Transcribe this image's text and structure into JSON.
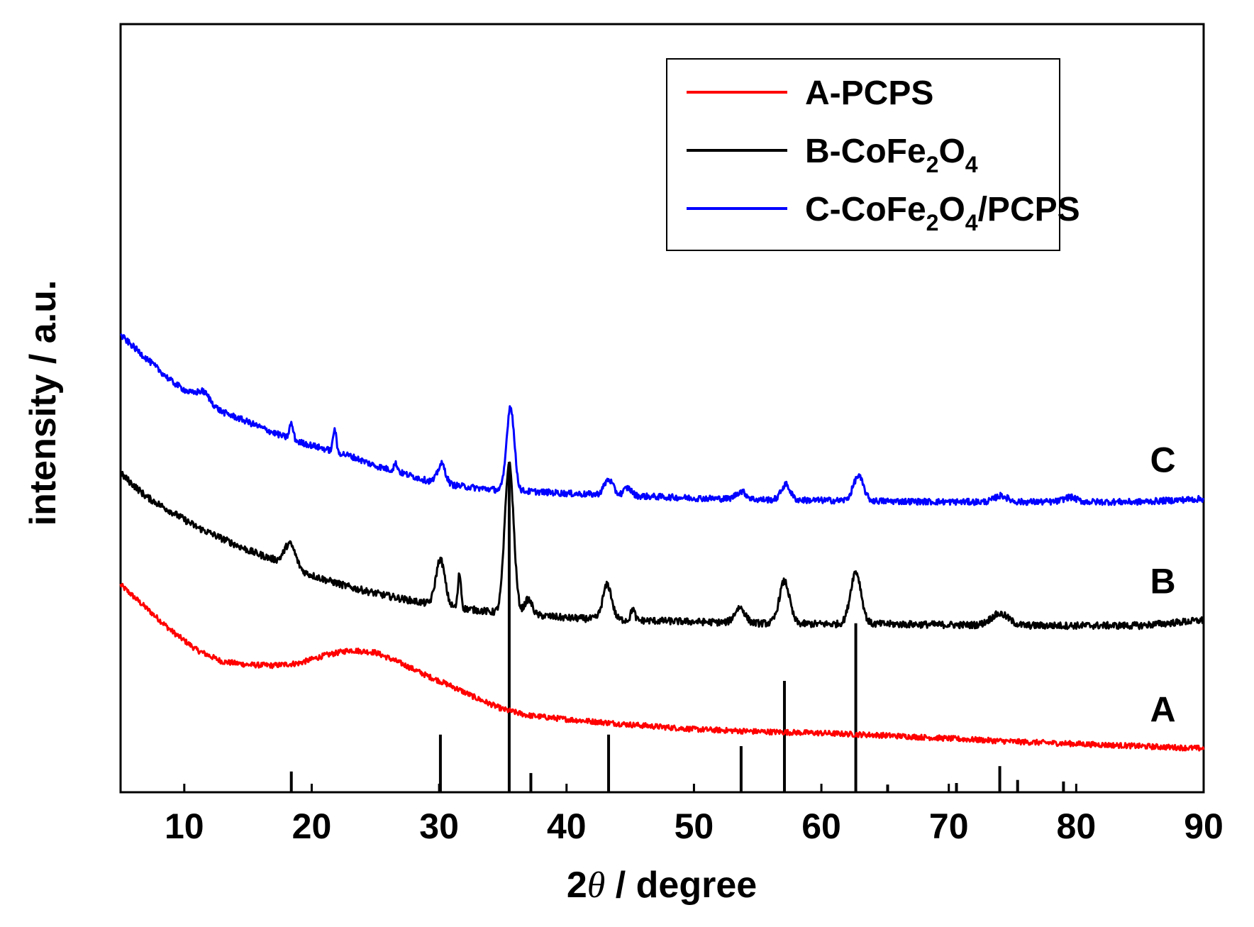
{
  "chart_data": {
    "type": "line",
    "title": "",
    "xlabel": {
      "prefix": "2",
      "symbol": "θ",
      "suffix": " / degree"
    },
    "ylabel": "intensity / a.u.",
    "xlim": [
      5,
      90
    ],
    "ylim": [
      0,
      100
    ],
    "x_ticks": [
      10,
      20,
      30,
      40,
      50,
      60,
      70,
      80,
      90
    ],
    "grid": false,
    "legend_position": "top-right",
    "series": [
      {
        "id": "A",
        "name": "A-PCPS",
        "legend": {
          "main": "A-PCPS",
          "parts": []
        },
        "color": "#ff0000",
        "curve_label": "A",
        "noise": 0.35,
        "points": [
          [
            5,
            27
          ],
          [
            7,
            24
          ],
          [
            9,
            21
          ],
          [
            11,
            18.5
          ],
          [
            13,
            17
          ],
          [
            15,
            16.6
          ],
          [
            17,
            16.5
          ],
          [
            19,
            16.8
          ],
          [
            21,
            17.8
          ],
          [
            23,
            18.5
          ],
          [
            25,
            18.2
          ],
          [
            27,
            16.8
          ],
          [
            29,
            15.2
          ],
          [
            31,
            13.8
          ],
          [
            33,
            12.2
          ],
          [
            35,
            10.8
          ],
          [
            37,
            10.0
          ],
          [
            40,
            9.5
          ],
          [
            45,
            8.8
          ],
          [
            50,
            8.2
          ],
          [
            55,
            7.9
          ],
          [
            60,
            7.7
          ],
          [
            65,
            7.4
          ],
          [
            70,
            7.0
          ],
          [
            75,
            6.6
          ],
          [
            80,
            6.3
          ],
          [
            85,
            6.0
          ],
          [
            90,
            5.7
          ]
        ],
        "peaks": []
      },
      {
        "id": "B",
        "name": "B-CoFe2O4",
        "legend": {
          "main": "B-CoFe",
          "parts": [
            {
              "t": "2",
              "sub": true
            },
            {
              "t": "O",
              "sub": false
            },
            {
              "t": "4",
              "sub": true
            }
          ]
        },
        "color": "#000000",
        "curve_label": "B",
        "noise": 0.45,
        "points": [
          [
            5,
            41.5
          ],
          [
            7,
            38.5
          ],
          [
            9,
            36.5
          ],
          [
            11,
            34.5
          ],
          [
            13,
            33
          ],
          [
            15,
            31.5
          ],
          [
            17,
            30.3
          ],
          [
            19,
            28.8
          ],
          [
            21,
            27.7
          ],
          [
            23,
            26.7
          ],
          [
            25,
            25.9
          ],
          [
            27,
            25.2
          ],
          [
            29,
            24.6
          ],
          [
            31,
            24.1
          ],
          [
            33,
            23.7
          ],
          [
            35,
            23.3
          ],
          [
            38,
            23.0
          ],
          [
            40,
            22.7
          ],
          [
            45,
            22.4
          ],
          [
            50,
            22.2
          ],
          [
            55,
            22.0
          ],
          [
            60,
            21.9
          ],
          [
            65,
            21.9
          ],
          [
            70,
            21.8
          ],
          [
            75,
            21.7
          ],
          [
            80,
            21.7
          ],
          [
            85,
            21.7
          ],
          [
            90,
            22.4
          ]
        ],
        "peaks": [
          [
            18.3,
            3.0,
            0.45
          ],
          [
            30.1,
            6.0,
            0.35
          ],
          [
            31.6,
            4.5,
            0.12
          ],
          [
            35.5,
            19.5,
            0.35
          ],
          [
            37.0,
            2.0,
            0.3
          ],
          [
            43.2,
            4.5,
            0.35
          ],
          [
            45.2,
            1.5,
            0.15
          ],
          [
            53.6,
            2.0,
            0.4
          ],
          [
            57.1,
            5.5,
            0.4
          ],
          [
            62.7,
            6.8,
            0.42
          ],
          [
            74.0,
            1.5,
            0.7
          ]
        ]
      },
      {
        "id": "C",
        "name": "C-CoFe2O4/PCPS",
        "legend": {
          "main": "C-CoFe",
          "parts": [
            {
              "t": "2",
              "sub": true
            },
            {
              "t": "O",
              "sub": false
            },
            {
              "t": "4",
              "sub": true
            },
            {
              "t": "/PCPS",
              "sub": false
            }
          ]
        },
        "color": "#0000ff",
        "curve_label": "C",
        "noise": 0.4,
        "points": [
          [
            5,
            59.5
          ],
          [
            7,
            56.5
          ],
          [
            9,
            53.5
          ],
          [
            11,
            51.3
          ],
          [
            13,
            49.5
          ],
          [
            15,
            48.2
          ],
          [
            17,
            46.8
          ],
          [
            19,
            45.6
          ],
          [
            21,
            44.7
          ],
          [
            23,
            43.8
          ],
          [
            25,
            42.5
          ],
          [
            27,
            41.6
          ],
          [
            29,
            40.6
          ],
          [
            31,
            40.0
          ],
          [
            33,
            39.6
          ],
          [
            35,
            39.3
          ],
          [
            38,
            39.1
          ],
          [
            40,
            38.9
          ],
          [
            45,
            38.6
          ],
          [
            50,
            38.3
          ],
          [
            55,
            38.1
          ],
          [
            60,
            38.0
          ],
          [
            65,
            37.9
          ],
          [
            70,
            37.8
          ],
          [
            75,
            37.8
          ],
          [
            80,
            37.8
          ],
          [
            85,
            37.8
          ],
          [
            90,
            38.2
          ]
        ],
        "peaks": [
          [
            11.5,
            1.3,
            0.5
          ],
          [
            18.4,
            2.0,
            0.15
          ],
          [
            21.8,
            3.0,
            0.12
          ],
          [
            26.6,
            1.0,
            0.15
          ],
          [
            30.2,
            2.5,
            0.3
          ],
          [
            35.6,
            11.0,
            0.3
          ],
          [
            43.3,
            2.0,
            0.35
          ],
          [
            44.8,
            1.0,
            0.3
          ],
          [
            53.7,
            1.0,
            0.4
          ],
          [
            57.2,
            2.0,
            0.35
          ],
          [
            62.9,
            3.2,
            0.4
          ],
          [
            74.1,
            0.8,
            0.5
          ],
          [
            79.5,
            0.6,
            0.5
          ]
        ]
      }
    ],
    "reference_lines": [
      {
        "x": 18.4,
        "height": 2.7
      },
      {
        "x": 30.1,
        "height": 7.5
      },
      {
        "x": 35.5,
        "height": 43.0
      },
      {
        "x": 37.2,
        "height": 2.5
      },
      {
        "x": 43.3,
        "height": 7.5
      },
      {
        "x": 53.7,
        "height": 6.0
      },
      {
        "x": 57.1,
        "height": 14.5
      },
      {
        "x": 62.7,
        "height": 22.0
      },
      {
        "x": 65.2,
        "height": 1.0
      },
      {
        "x": 70.6,
        "height": 1.2
      },
      {
        "x": 74.0,
        "height": 3.4
      },
      {
        "x": 75.4,
        "height": 1.6
      },
      {
        "x": 79.0,
        "height": 1.4
      }
    ]
  }
}
